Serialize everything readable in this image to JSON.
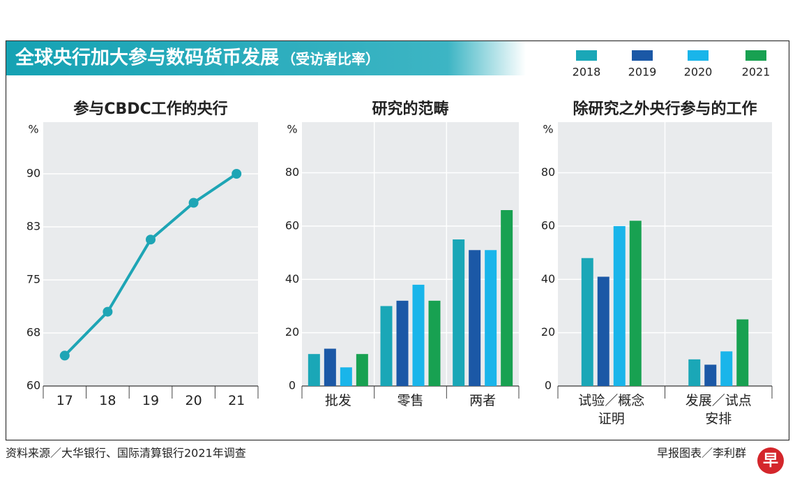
{
  "header": {
    "title": "全球央行加大参与数码货币发展",
    "subtitle": "（受访者比率）"
  },
  "chart_data": [
    {
      "type": "line",
      "title": "参与CBDC工作的央行",
      "y_unit": "%",
      "categories": [
        "17",
        "18",
        "19",
        "20",
        "21"
      ],
      "values": [
        64.3,
        70.5,
        80.7,
        85.9,
        90
      ],
      "color": "#1ea5b5",
      "ylim": [
        60,
        97.3
      ],
      "yticks": [
        60,
        {
          "value": 67.5,
          "label": "68"
        },
        75,
        {
          "value": 82.5,
          "label": "83"
        },
        90
      ],
      "grid": true
    },
    {
      "type": "bar",
      "title": "研究的范畴",
      "y_unit": "%",
      "categories": [
        "批发",
        "零售",
        "两者"
      ],
      "series": [
        {
          "name": "2018",
          "color": "#1aa7b7",
          "values": [
            12,
            30,
            55
          ]
        },
        {
          "name": "2019",
          "color": "#1b58a6",
          "values": [
            14,
            32,
            51
          ]
        },
        {
          "name": "2020",
          "color": "#19b5ea",
          "values": [
            7,
            38,
            51
          ]
        },
        {
          "name": "2021",
          "color": "#18a151",
          "values": [
            12,
            32,
            66
          ]
        }
      ],
      "ylim": [
        0,
        99
      ],
      "yticks": [
        0,
        20,
        40,
        60,
        80
      ],
      "grid": true
    },
    {
      "type": "bar",
      "title": "除研究之外央行参与的工作",
      "y_unit": "%",
      "categories": [
        "试验／概念证明",
        "发展／试点安排"
      ],
      "series": [
        {
          "color": "#1aa7b7",
          "values": [
            48,
            10
          ]
        },
        {
          "color": "#1b58a6",
          "values": [
            41,
            8
          ]
        },
        {
          "color": "#19b5ea",
          "values": [
            60,
            13
          ]
        },
        {
          "color": "#18a151",
          "values": [
            62,
            25
          ]
        }
      ],
      "ylim": [
        0,
        99
      ],
      "yticks": [
        0,
        20,
        40,
        60,
        80
      ],
      "grid": true
    }
  ],
  "footer": {
    "source": "资料来源／大华银行、国际清算银行2021年调查",
    "credit": "早报图表／李利群",
    "logo": "早"
  }
}
